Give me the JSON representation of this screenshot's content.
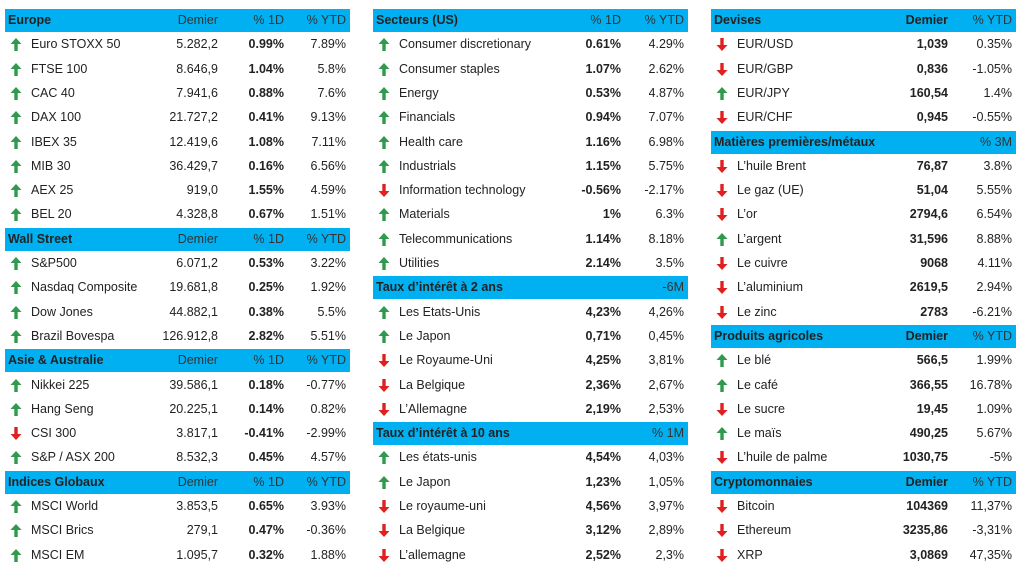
{
  "columns": [
    {
      "sections": [
        {
          "header": [
            "Europe",
            "Demier",
            "% 1D",
            "% YTD"
          ],
          "rows": [
            {
              "trend": "up",
              "cells": [
                "Euro STOXX 50",
                "5.282,2",
                "0.99%",
                "7.89%"
              ]
            },
            {
              "trend": "up",
              "cells": [
                "FTSE 100",
                "8.646,9",
                "1.04%",
                "5.8%"
              ]
            },
            {
              "trend": "up",
              "cells": [
                "CAC 40",
                "7.941,6",
                "0.88%",
                "7.6%"
              ]
            },
            {
              "trend": "up",
              "cells": [
                "DAX 100",
                "21.727,2",
                "0.41%",
                "9.13%"
              ]
            },
            {
              "trend": "up",
              "cells": [
                "IBEX 35",
                "12.419,6",
                "1.08%",
                "7.11%"
              ]
            },
            {
              "trend": "up",
              "cells": [
                "MIB 30",
                "36.429,7",
                "0.16%",
                "6.56%"
              ]
            },
            {
              "trend": "up",
              "cells": [
                "AEX 25",
                "919,0",
                "1.55%",
                "4.59%"
              ]
            },
            {
              "trend": "up",
              "cells": [
                "BEL 20",
                "4.328,8",
                "0.67%",
                "1.51%"
              ]
            }
          ]
        },
        {
          "header": [
            "Wall Street",
            "Demier",
            "% 1D",
            "% YTD"
          ],
          "rows": [
            {
              "trend": "up",
              "cells": [
                "S&P500",
                "6.071,2",
                "0.53%",
                "3.22%"
              ]
            },
            {
              "trend": "up",
              "cells": [
                "Nasdaq Composite",
                "19.681,8",
                "0.25%",
                "1.92%"
              ]
            },
            {
              "trend": "up",
              "cells": [
                "Dow Jones",
                "44.882,1",
                "0.38%",
                "5.5%"
              ]
            },
            {
              "trend": "up",
              "cells": [
                "Brazil Bovespa",
                "126.912,8",
                "2.82%",
                "5.51%"
              ]
            }
          ]
        },
        {
          "header": [
            "Asie & Australie",
            "Demier",
            "% 1D",
            "% YTD"
          ],
          "rows": [
            {
              "trend": "up",
              "cells": [
                "Nikkei 225",
                "39.586,1",
                "0.18%",
                "-0.77%"
              ]
            },
            {
              "trend": "up",
              "cells": [
                "Hang Seng",
                "20.225,1",
                "0.14%",
                "0.82%"
              ]
            },
            {
              "trend": "down",
              "cells": [
                "CSI 300",
                "3.817,1",
                "-0.41%",
                "-2.99%"
              ]
            },
            {
              "trend": "up",
              "cells": [
                "S&P / ASX 200",
                "8.532,3",
                "0.45%",
                "4.57%"
              ]
            }
          ]
        },
        {
          "header": [
            "Indices Globaux",
            "Demier",
            "% 1D",
            "% YTD"
          ],
          "rows": [
            {
              "trend": "up",
              "cells": [
                "MSCI World",
                "3.853,5",
                "0.65%",
                "3.93%"
              ]
            },
            {
              "trend": "up",
              "cells": [
                "MSCI Brics",
                "279,1",
                "0.47%",
                "-0.36%"
              ]
            },
            {
              "trend": "up",
              "cells": [
                "MSCI EM",
                "1.095,7",
                "0.32%",
                "1.88%"
              ]
            }
          ]
        }
      ]
    },
    {
      "sections": [
        {
          "header": [
            "Secteurs (US)",
            "% 1D",
            "% YTD"
          ],
          "rows": [
            {
              "trend": "up",
              "cells": [
                "Consumer discretionary",
                "0.61%",
                "4.29%"
              ]
            },
            {
              "trend": "up",
              "cells": [
                "Consumer staples",
                "1.07%",
                "2.62%"
              ]
            },
            {
              "trend": "up",
              "cells": [
                "Energy",
                "0.53%",
                "4.87%"
              ]
            },
            {
              "trend": "up",
              "cells": [
                "Financials",
                "0.94%",
                "7.07%"
              ]
            },
            {
              "trend": "up",
              "cells": [
                "Health care",
                "1.16%",
                "6.98%"
              ]
            },
            {
              "trend": "up",
              "cells": [
                "Industrials",
                "1.15%",
                "5.75%"
              ]
            },
            {
              "trend": "down",
              "cells": [
                "Information technology",
                "-0.56%",
                "-2.17%"
              ]
            },
            {
              "trend": "up",
              "cells": [
                "Materials",
                "1%",
                "6.3%"
              ]
            },
            {
              "trend": "up",
              "cells": [
                "Telecommunications",
                "1.14%",
                "8.18%"
              ]
            },
            {
              "trend": "up",
              "cells": [
                "Utilities",
                "2.14%",
                "3.5%"
              ]
            }
          ]
        },
        {
          "header": [
            "Taux d’intérêt à 2 ans",
            "-6M"
          ],
          "rows": [
            {
              "trend": "up",
              "cells": [
                "Les Etats-Unis",
                "4,23%",
                "4,26%"
              ]
            },
            {
              "trend": "up",
              "cells": [
                "Le Japon",
                "0,71%",
                "0,45%"
              ]
            },
            {
              "trend": "down",
              "cells": [
                "Le Royaume-Uni",
                "4,25%",
                "3,81%"
              ]
            },
            {
              "trend": "down",
              "cells": [
                "La Belgique",
                "2,36%",
                "2,67%"
              ]
            },
            {
              "trend": "down",
              "cells": [
                "L’Allemagne",
                "2,19%",
                "2,53%"
              ]
            }
          ]
        },
        {
          "header": [
            "Taux d’intérêt à 10 ans",
            "% 1M"
          ],
          "rows": [
            {
              "trend": "up",
              "cells": [
                "Les états-unis",
                "4,54%",
                "4,03%"
              ]
            },
            {
              "trend": "up",
              "cells": [
                "Le Japon",
                "1,23%",
                "1,05%"
              ]
            },
            {
              "trend": "down",
              "cells": [
                "Le royaume-uni",
                "4,56%",
                "3,97%"
              ]
            },
            {
              "trend": "down",
              "cells": [
                "La Belgique",
                "3,12%",
                "2,89%"
              ]
            },
            {
              "trend": "down",
              "cells": [
                "L’allemagne",
                "2,52%",
                "2,3%"
              ]
            }
          ]
        }
      ]
    },
    {
      "sections": [
        {
          "header": [
            "Devises",
            "Demier",
            "% YTD"
          ],
          "rows": [
            {
              "trend": "down",
              "cells": [
                "EUR/USD",
                "1,039",
                "0.35%"
              ]
            },
            {
              "trend": "down",
              "cells": [
                "EUR/GBP",
                "0,836",
                "-1.05%"
              ]
            },
            {
              "trend": "up",
              "cells": [
                "EUR/JPY",
                "160,54",
                "1.4%"
              ]
            },
            {
              "trend": "down",
              "cells": [
                "EUR/CHF",
                "0,945",
                "-0.55%"
              ]
            }
          ]
        },
        {
          "header": [
            "Matières premières/métaux",
            "% 3M"
          ],
          "rows": [
            {
              "trend": "down",
              "cells": [
                "L’huile Brent",
                "76,87",
                "3.8%"
              ]
            },
            {
              "trend": "down",
              "cells": [
                "Le gaz (UE)",
                "51,04",
                "5.55%"
              ]
            },
            {
              "trend": "down",
              "cells": [
                "L’or",
                "2794,6",
                "6.54%"
              ]
            },
            {
              "trend": "up",
              "cells": [
                "L’argent",
                "31,596",
                "8.88%"
              ]
            },
            {
              "trend": "down",
              "cells": [
                "Le cuivre",
                "9068",
                "4.11%"
              ]
            },
            {
              "trend": "down",
              "cells": [
                "L’aluminium",
                "2619,5",
                "2.94%"
              ]
            },
            {
              "trend": "down",
              "cells": [
                "Le zinc",
                "2783",
                "-6.21%"
              ]
            }
          ]
        },
        {
          "header": [
            "Produits agricoles",
            "Demier",
            "% YTD"
          ],
          "rows": [
            {
              "trend": "up",
              "cells": [
                "Le blé",
                "566,5",
                "1.99%"
              ]
            },
            {
              "trend": "up",
              "cells": [
                "Le café",
                "366,55",
                "16.78%"
              ]
            },
            {
              "trend": "down",
              "cells": [
                "Le sucre",
                "19,45",
                "1.09%"
              ]
            },
            {
              "trend": "up",
              "cells": [
                "Le maïs",
                "490,25",
                "5.67%"
              ]
            },
            {
              "trend": "down",
              "cells": [
                "L’huile de palme",
                "1030,75",
                "-5%"
              ]
            }
          ]
        },
        {
          "header": [
            "Cryptomonnaies",
            "Demier",
            "% YTD"
          ],
          "rows": [
            {
              "trend": "down",
              "cells": [
                "Bitcoin",
                "104369",
                "11,37%"
              ]
            },
            {
              "trend": "down",
              "cells": [
                "Ethereum",
                "3235,86",
                "-3,31%"
              ]
            },
            {
              "trend": "down",
              "cells": [
                "XRP",
                "3,0869",
                "47,35%"
              ]
            }
          ]
        }
      ]
    }
  ]
}
